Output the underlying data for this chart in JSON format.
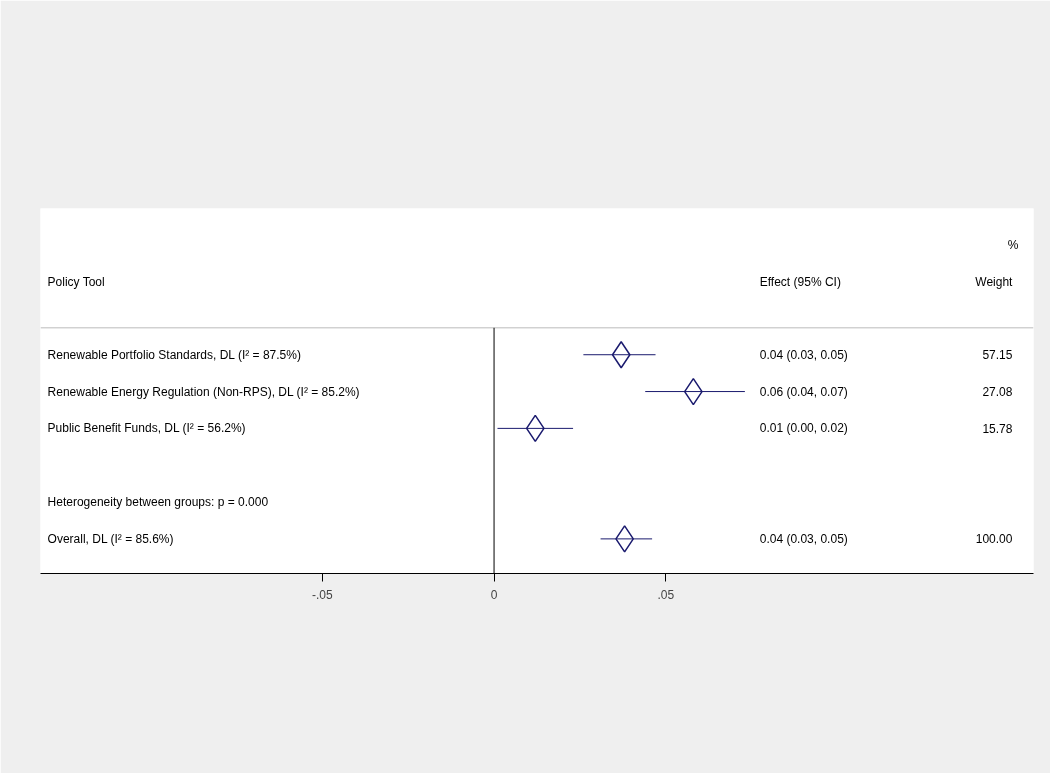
{
  "chart_data": {
    "type": "scatter",
    "orientation": "horizontal",
    "marker": "diamond",
    "grid": false,
    "tick_labels": "x",
    "categories": [
      "Renewable Portfolio Standards, DL (I² = 87.5%)",
      "Renewable Energy Regulation (Non-RPS), DL (I² = 85.2%)",
      "Public Benefit Funds, DL (I² = 56.2%)",
      null,
      "Heterogeneity between groups: p = 0.000",
      "Overall, DL (I² = 85.6%)"
    ],
    "series": [
      {
        "color": "#1a1a6e",
        "values": [
          0.037,
          0.058,
          0.012,
          null,
          null,
          0.038
        ],
        "errors": [
          [
            0.026,
            0.047
          ],
          [
            0.044,
            0.073
          ],
          [
            0.001,
            0.023
          ],
          null,
          null,
          [
            0.031,
            0.046
          ]
        ]
      }
    ],
    "xlim": [
      -0.132,
      0.157
    ],
    "xticks": [
      {
        "value": -0.05,
        "label": "-.05"
      },
      0,
      {
        "value": 0.05,
        "label": ".05"
      }
    ],
    "ref_lines": [
      {
        "axis": "x",
        "value": 0,
        "color": "#000000"
      }
    ],
    "annotations": [
      "Policy Tool",
      "%",
      "Effect (95% CI)",
      "Weight",
      "0.04 (0.03, 0.05)",
      "0.06 (0.04, 0.07)",
      "0.01 (0.00, 0.02)",
      "0.04 (0.03, 0.05)",
      "57.15",
      "27.08",
      "15.78",
      "100.00"
    ]
  }
}
